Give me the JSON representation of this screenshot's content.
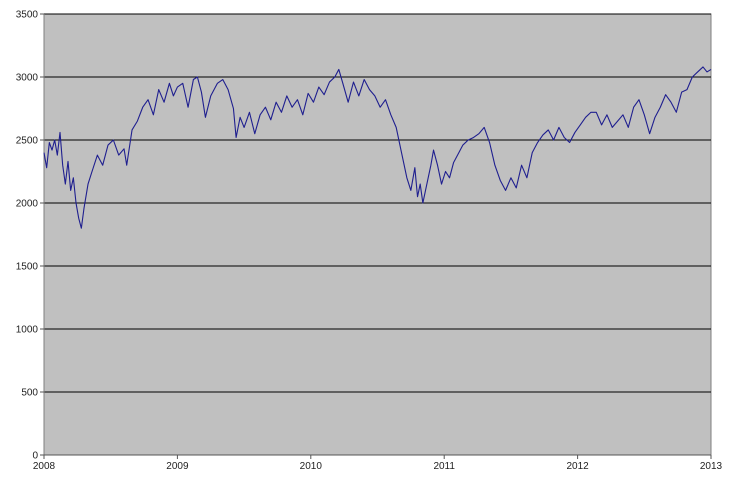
{
  "chart_data": {
    "type": "line",
    "title": "",
    "xlabel": "",
    "ylabel": "",
    "xlim": [
      2008,
      2013
    ],
    "ylim": [
      0,
      3500
    ],
    "x_ticks": [
      "2008",
      "2009",
      "2010",
      "2011",
      "2012",
      "2013"
    ],
    "y_ticks": [
      "0",
      "500",
      "1000",
      "1500",
      "2000",
      "2500",
      "3000",
      "3500"
    ],
    "grid": "horizontal",
    "legend": "none",
    "colors": {
      "plot_background": "#c0c0c0",
      "line": "#1f1f8f",
      "gridline": "#000000"
    },
    "series": [
      {
        "x": [
          2008.0,
          2008.02,
          2008.04,
          2008.06,
          2008.08,
          2008.1,
          2008.12,
          2008.14,
          2008.16,
          2008.18,
          2008.2,
          2008.22,
          2008.24,
          2008.26,
          2008.28,
          2008.3,
          2008.33,
          2008.36,
          2008.4,
          2008.44,
          2008.48,
          2008.52,
          2008.56,
          2008.6,
          2008.62,
          2008.66,
          2008.7,
          2008.74,
          2008.78,
          2008.82,
          2008.86,
          2008.9,
          2008.94,
          2008.97,
          2009.0,
          2009.04,
          2009.08,
          2009.12,
          2009.15,
          2009.18,
          2009.21,
          2009.25,
          2009.3,
          2009.34,
          2009.38,
          2009.42,
          2009.44,
          2009.47,
          2009.5,
          2009.54,
          2009.58,
          2009.62,
          2009.66,
          2009.7,
          2009.74,
          2009.78,
          2009.82,
          2009.86,
          2009.9,
          2009.94,
          2009.98,
          2010.02,
          2010.06,
          2010.1,
          2010.14,
          2010.18,
          2010.21,
          2010.24,
          2010.28,
          2010.32,
          2010.36,
          2010.4,
          2010.44,
          2010.48,
          2010.52,
          2010.56,
          2010.6,
          2010.64,
          2010.68,
          2010.72,
          2010.75,
          2010.78,
          2010.8,
          2010.82,
          2010.84,
          2010.86,
          2010.88,
          2010.9,
          2010.92,
          2010.95,
          2010.98,
          2011.01,
          2011.04,
          2011.07,
          2011.1,
          2011.14,
          2011.18,
          2011.22,
          2011.26,
          2011.3,
          2011.34,
          2011.38,
          2011.42,
          2011.46,
          2011.5,
          2011.54,
          2011.58,
          2011.62,
          2011.66,
          2011.7,
          2011.74,
          2011.78,
          2011.82,
          2011.86,
          2011.9,
          2011.94,
          2011.98,
          2012.02,
          2012.06,
          2012.1,
          2012.14,
          2012.18,
          2012.22,
          2012.26,
          2012.3,
          2012.34,
          2012.38,
          2012.42,
          2012.46,
          2012.5,
          2012.54,
          2012.58,
          2012.62,
          2012.66,
          2012.7,
          2012.74,
          2012.78,
          2012.82,
          2012.86,
          2012.9,
          2012.94,
          2012.97,
          2013.0
        ],
        "y": [
          2400,
          2280,
          2480,
          2420,
          2500,
          2380,
          2560,
          2300,
          2150,
          2330,
          2100,
          2200,
          2000,
          1880,
          1800,
          1960,
          2150,
          2250,
          2380,
          2300,
          2460,
          2500,
          2380,
          2430,
          2300,
          2580,
          2650,
          2760,
          2820,
          2700,
          2900,
          2800,
          2950,
          2850,
          2920,
          2950,
          2760,
          2980,
          3000,
          2880,
          2680,
          2850,
          2950,
          2980,
          2900,
          2750,
          2520,
          2680,
          2600,
          2720,
          2550,
          2700,
          2760,
          2660,
          2800,
          2720,
          2850,
          2760,
          2820,
          2700,
          2870,
          2800,
          2920,
          2860,
          2960,
          3000,
          3060,
          2950,
          2800,
          2960,
          2850,
          2980,
          2900,
          2850,
          2760,
          2820,
          2700,
          2600,
          2400,
          2200,
          2100,
          2280,
          2050,
          2150,
          2000,
          2100,
          2200,
          2300,
          2420,
          2300,
          2150,
          2250,
          2200,
          2320,
          2380,
          2460,
          2500,
          2520,
          2550,
          2600,
          2480,
          2300,
          2180,
          2100,
          2200,
          2120,
          2300,
          2200,
          2400,
          2480,
          2540,
          2580,
          2500,
          2600,
          2520,
          2480,
          2560,
          2620,
          2680,
          2720,
          2720,
          2620,
          2700,
          2600,
          2650,
          2700,
          2600,
          2760,
          2820,
          2700,
          2550,
          2680,
          2760,
          2860,
          2800,
          2720,
          2880,
          2900,
          3000,
          3040,
          3080,
          3040,
          3060
        ]
      }
    ]
  }
}
